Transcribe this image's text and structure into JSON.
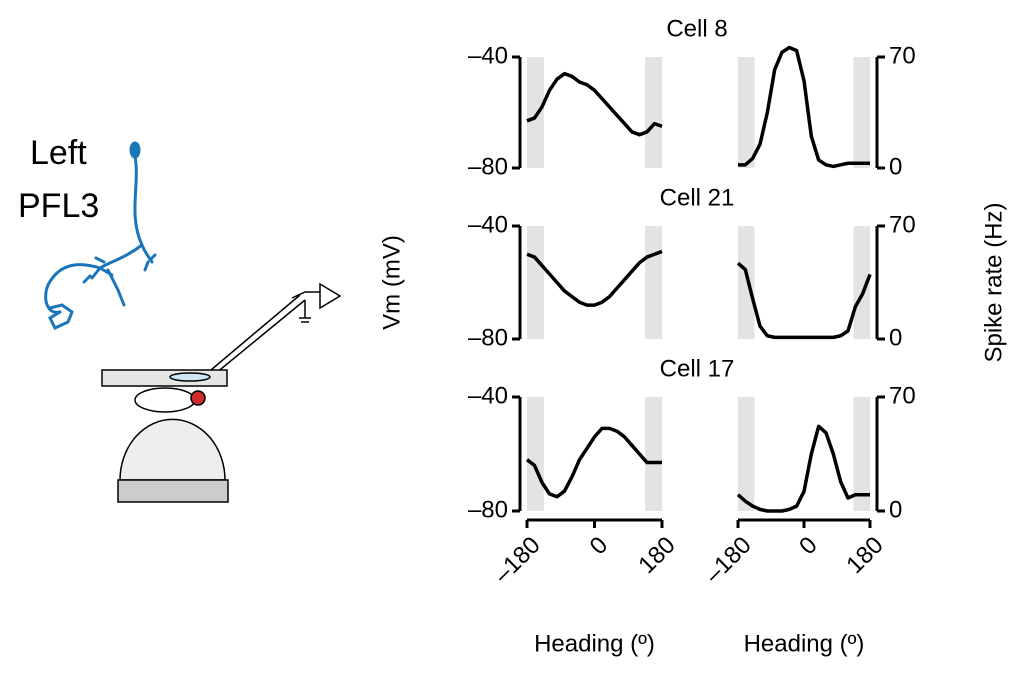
{
  "illustration": {
    "label": [
      "Left",
      "PFL3"
    ]
  },
  "chart_data": [
    {
      "type": "line",
      "title": "Cell 8",
      "side": "left",
      "color": "#000000",
      "x": [
        -180,
        -160,
        -140,
        -120,
        -100,
        -80,
        -60,
        -40,
        -20,
        0,
        20,
        40,
        60,
        80,
        100,
        120,
        140,
        160,
        180
      ],
      "values": [
        -63,
        -62,
        -58,
        -52,
        -48,
        -46,
        -47,
        -49,
        -50,
        -52,
        -55,
        -58,
        -61,
        -64,
        -67,
        -68,
        -67,
        -64,
        -65
      ],
      "xlim": [
        -180,
        180
      ],
      "ylim": [
        -80,
        -40
      ],
      "yticks": [
        {
          "value": -80,
          "label": "–80"
        },
        {
          "value": -40,
          "label": "–40"
        }
      ],
      "shaded": [
        [
          -180,
          -135
        ],
        [
          135,
          180
        ]
      ]
    },
    {
      "type": "line",
      "side": "right",
      "color": "#000000",
      "x": [
        -180,
        -160,
        -140,
        -120,
        -100,
        -80,
        -60,
        -40,
        -20,
        0,
        20,
        40,
        60,
        80,
        100,
        120,
        140,
        160,
        180
      ],
      "values": [
        2,
        2,
        6,
        15,
        35,
        62,
        73,
        76,
        74,
        55,
        20,
        5,
        2,
        1,
        2,
        3,
        3,
        3,
        3
      ],
      "xlim": [
        -180,
        180
      ],
      "ylim": [
        0,
        70
      ],
      "yticks": [
        0,
        70
      ],
      "shaded": [
        [
          -180,
          -135
        ],
        [
          135,
          180
        ]
      ]
    },
    {
      "type": "line",
      "title": "Cell 21",
      "side": "left",
      "color": "#000000",
      "ylabel": "Vm (mV)",
      "x": [
        -180,
        -160,
        -140,
        -120,
        -100,
        -80,
        -60,
        -40,
        -20,
        0,
        20,
        40,
        60,
        80,
        100,
        120,
        140,
        160,
        180
      ],
      "values": [
        -50,
        -51,
        -54,
        -57,
        -60,
        -63,
        -65,
        -67,
        -68,
        -68,
        -67,
        -65,
        -62,
        -59,
        -56,
        -53,
        -51,
        -50,
        -49
      ],
      "xlim": [
        -180,
        180
      ],
      "ylim": [
        -80,
        -40
      ],
      "yticks": [
        {
          "value": -80,
          "label": "–80"
        },
        {
          "value": -40,
          "label": "–40"
        }
      ],
      "shaded": [
        [
          -180,
          -135
        ],
        [
          135,
          180
        ]
      ]
    },
    {
      "type": "line",
      "side": "right",
      "color": "#000000",
      "ylabel": "Spike rate (Hz)",
      "x": [
        -180,
        -160,
        -140,
        -120,
        -100,
        -80,
        -60,
        -40,
        -20,
        0,
        20,
        40,
        60,
        80,
        100,
        120,
        140,
        160,
        180
      ],
      "values": [
        47,
        43,
        25,
        8,
        2,
        1,
        1,
        1,
        1,
        1,
        1,
        1,
        1,
        1,
        2,
        5,
        20,
        28,
        40
      ],
      "xlim": [
        -180,
        180
      ],
      "ylim": [
        0,
        70
      ],
      "yticks": [
        0,
        70
      ],
      "shaded": [
        [
          -180,
          -135
        ],
        [
          135,
          180
        ]
      ]
    },
    {
      "type": "line",
      "title": "Cell 17",
      "side": "left",
      "color": "#000000",
      "xlabel": "Heading (º)",
      "x": [
        -180,
        -160,
        -140,
        -120,
        -100,
        -80,
        -60,
        -40,
        -20,
        0,
        20,
        40,
        60,
        80,
        100,
        120,
        140,
        160,
        180
      ],
      "values": [
        -62,
        -64,
        -70,
        -74,
        -75,
        -73,
        -68,
        -62,
        -58,
        -54,
        -51,
        -51,
        -52,
        -54,
        -57,
        -60,
        -63,
        -63,
        -63
      ],
      "xlim": [
        -180,
        180
      ],
      "ylim": [
        -80,
        -40
      ],
      "yticks": [
        {
          "value": -80,
          "label": "–80"
        },
        {
          "value": -40,
          "label": "–40"
        }
      ],
      "xticks": [
        {
          "value": -180,
          "label": "–180"
        },
        0,
        180
      ],
      "shaded": [
        [
          -180,
          -135
        ],
        [
          135,
          180
        ]
      ]
    },
    {
      "type": "line",
      "side": "right",
      "color": "#000000",
      "xlabel": "Heading (º)",
      "x": [
        -180,
        -160,
        -140,
        -120,
        -100,
        -80,
        -60,
        -40,
        -20,
        0,
        20,
        40,
        60,
        80,
        100,
        120,
        140,
        160,
        180
      ],
      "values": [
        10,
        6,
        3,
        1,
        0,
        0,
        0,
        1,
        3,
        12,
        35,
        52,
        48,
        35,
        18,
        8,
        10,
        10,
        10
      ],
      "xlim": [
        -180,
        180
      ],
      "ylim": [
        0,
        70
      ],
      "yticks": [
        0,
        70
      ],
      "xticks": [
        {
          "value": -180,
          "label": "–180"
        },
        0,
        180
      ],
      "shaded": [
        [
          -180,
          -135
        ],
        [
          135,
          180
        ]
      ]
    }
  ]
}
